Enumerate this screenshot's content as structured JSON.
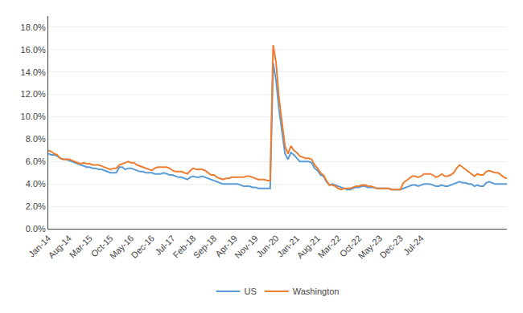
{
  "chart_data": {
    "type": "line",
    "categories": [
      "Jan-14",
      null,
      null,
      null,
      null,
      null,
      null,
      "Aug-14",
      null,
      null,
      null,
      null,
      null,
      null,
      "Mar-15",
      null,
      null,
      null,
      null,
      null,
      null,
      "Oct-15",
      null,
      null,
      null,
      null,
      null,
      null,
      "May-16",
      null,
      null,
      null,
      null,
      null,
      null,
      "Dec-16",
      null,
      null,
      null,
      null,
      null,
      null,
      "Jul-17",
      null,
      null,
      null,
      null,
      null,
      null,
      "Feb-18",
      null,
      null,
      null,
      null,
      null,
      null,
      "Sep-18",
      null,
      null,
      null,
      null,
      null,
      null,
      "Apr-19",
      null,
      null,
      null,
      null,
      null,
      null,
      "Nov-19",
      null,
      null,
      null,
      null,
      null,
      null,
      "Jun-20",
      null,
      null,
      null,
      null,
      null,
      null,
      "Jan-21",
      null,
      null,
      null,
      null,
      null,
      null,
      "Aug-21",
      null,
      null,
      null,
      null,
      null,
      null,
      "Mar-22",
      null,
      null,
      null,
      null,
      null,
      null,
      "Oct-22",
      null,
      null,
      null,
      null,
      null,
      null,
      "May-23",
      null,
      null,
      null,
      null,
      null,
      null,
      "Dec-23",
      null,
      null,
      null,
      null,
      null,
      null,
      "Jul-24",
      null,
      null,
      null,
      null,
      null,
      null,
      null,
      null,
      null,
      null,
      null,
      null,
      null,
      null,
      null,
      null,
      null,
      null,
      null,
      null,
      null,
      null,
      null,
      null,
      null,
      null,
      null,
      null,
      null
    ],
    "series": [
      {
        "name": "US",
        "color": "#5B9BD5",
        "values": [
          0.067,
          0.066,
          0.066,
          0.065,
          0.063,
          0.062,
          0.062,
          0.061,
          0.06,
          0.059,
          0.058,
          0.057,
          0.056,
          0.055,
          0.055,
          0.054,
          0.054,
          0.053,
          0.053,
          0.052,
          0.051,
          0.05,
          0.05,
          0.05,
          0.055,
          0.055,
          0.053,
          0.054,
          0.054,
          0.053,
          0.052,
          0.051,
          0.051,
          0.05,
          0.05,
          0.05,
          0.049,
          0.049,
          0.049,
          0.05,
          0.049,
          0.048,
          0.048,
          0.047,
          0.046,
          0.046,
          0.045,
          0.044,
          0.046,
          0.047,
          0.046,
          0.046,
          0.047,
          0.046,
          0.045,
          0.044,
          0.043,
          0.042,
          0.041,
          0.04,
          0.04,
          0.04,
          0.04,
          0.04,
          0.04,
          0.039,
          0.038,
          0.038,
          0.038,
          0.037,
          0.037,
          0.036,
          0.036,
          0.036,
          0.036,
          0.036,
          0.148,
          0.132,
          0.106,
          0.088,
          0.067,
          0.062,
          0.068,
          0.066,
          0.063,
          0.06,
          0.06,
          0.06,
          0.06,
          0.059,
          0.054,
          0.052,
          0.048,
          0.047,
          0.042,
          0.039,
          0.04,
          0.039,
          0.038,
          0.037,
          0.036,
          0.035,
          0.035,
          0.036,
          0.037,
          0.037,
          0.038,
          0.038,
          0.037,
          0.037,
          0.037,
          0.036,
          0.036,
          0.036,
          0.036,
          0.036,
          0.035,
          0.035,
          0.035,
          0.035,
          0.036,
          0.037,
          0.038,
          0.039,
          0.039,
          0.038,
          0.039,
          0.04,
          0.04,
          0.04,
          0.039,
          0.038,
          0.038,
          0.039,
          0.038,
          0.038,
          0.039,
          0.04,
          0.041,
          0.042,
          0.041,
          0.041,
          0.04,
          0.04,
          0.038,
          0.039,
          0.038,
          0.038,
          0.041,
          0.042,
          0.041,
          0.04,
          0.04,
          0.04,
          0.04,
          0.04
        ]
      },
      {
        "name": "Washington",
        "color": "#ED7D31",
        "values": [
          0.07,
          0.069,
          0.067,
          0.066,
          0.063,
          0.062,
          0.062,
          0.062,
          0.061,
          0.06,
          0.059,
          0.058,
          0.059,
          0.058,
          0.058,
          0.057,
          0.057,
          0.057,
          0.056,
          0.055,
          0.054,
          0.053,
          0.054,
          0.054,
          0.057,
          0.058,
          0.059,
          0.06,
          0.059,
          0.059,
          0.057,
          0.056,
          0.055,
          0.054,
          0.053,
          0.052,
          0.054,
          0.055,
          0.055,
          0.055,
          0.055,
          0.054,
          0.052,
          0.051,
          0.051,
          0.051,
          0.05,
          0.049,
          0.052,
          0.054,
          0.053,
          0.053,
          0.053,
          0.052,
          0.05,
          0.048,
          0.048,
          0.046,
          0.045,
          0.044,
          0.045,
          0.045,
          0.046,
          0.046,
          0.046,
          0.046,
          0.046,
          0.047,
          0.047,
          0.046,
          0.045,
          0.044,
          0.044,
          0.044,
          0.043,
          0.043,
          0.164,
          0.148,
          0.116,
          0.095,
          0.074,
          0.067,
          0.074,
          0.07,
          0.068,
          0.065,
          0.064,
          0.063,
          0.063,
          0.062,
          0.057,
          0.054,
          0.05,
          0.048,
          0.043,
          0.039,
          0.039,
          0.038,
          0.036,
          0.035,
          0.036,
          0.036,
          0.036,
          0.037,
          0.038,
          0.038,
          0.039,
          0.039,
          0.038,
          0.038,
          0.037,
          0.036,
          0.036,
          0.036,
          0.036,
          0.036,
          0.035,
          0.035,
          0.035,
          0.035,
          0.041,
          0.043,
          0.045,
          0.047,
          0.047,
          0.046,
          0.047,
          0.049,
          0.049,
          0.049,
          0.048,
          0.046,
          0.047,
          0.049,
          0.047,
          0.047,
          0.048,
          0.05,
          0.054,
          0.057,
          0.055,
          0.053,
          0.051,
          0.049,
          0.047,
          0.049,
          0.048,
          0.048,
          0.051,
          0.052,
          0.051,
          0.05,
          0.05,
          0.048,
          0.046,
          0.045
        ]
      }
    ],
    "ylim": [
      0.0,
      0.19
    ],
    "yticks": [
      {
        "value": 0.0,
        "label": "0.0%"
      },
      {
        "value": 0.02,
        "label": "2.0%"
      },
      {
        "value": 0.04,
        "label": "4.0%"
      },
      {
        "value": 0.06,
        "label": "6.0%"
      },
      {
        "value": 0.08,
        "label": "8.0%"
      },
      {
        "value": 0.1,
        "label": "10.0%"
      },
      {
        "value": 0.12,
        "label": "12.0%"
      },
      {
        "value": 0.14,
        "label": "14.0%"
      },
      {
        "value": 0.16,
        "label": "16.0%"
      },
      {
        "value": 0.18,
        "label": "18.0%"
      }
    ],
    "grid": true,
    "legend": "bottom"
  }
}
